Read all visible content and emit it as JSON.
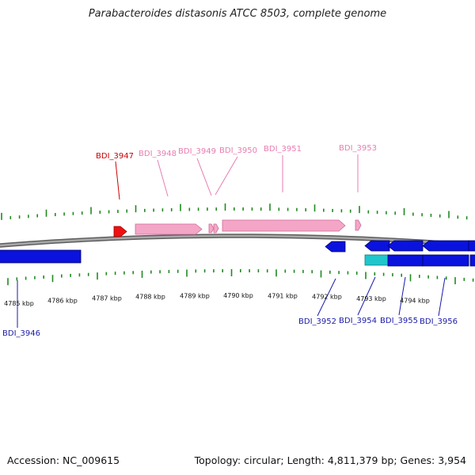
{
  "title": "Parabacteroides distasonis ATCC 8503, complete genome",
  "footer": {
    "accession": "Accession: NC_009615",
    "summary": "Topology: circular; Length: 4,811,379 bp; Genes: 3,954"
  },
  "colors": {
    "selected_gene": "#ee1111",
    "forward_gene": "#f4a6c6",
    "reverse_gene": "#0a12dd",
    "reverse_other": "#1fc6cc",
    "backbone": "#8a8a8a",
    "tick": "#1f8a1f",
    "label_selected": "#cc0000",
    "label_forward": "#e87db0",
    "label_reverse": "#1a1aaa"
  },
  "scale_labels": [
    "4785 kbp",
    "4786 kbp",
    "4787 kbp",
    "4788 kbp",
    "4789 kbp",
    "4790 kbp",
    "4791 kbp",
    "4792 kbp",
    "4793 kbp",
    "4794 kbp"
  ],
  "genes": [
    {
      "id": "BDI_3946",
      "strand": "reverse"
    },
    {
      "id": "BDI_3947",
      "strand": "forward",
      "selected": true
    },
    {
      "id": "BDI_3948",
      "strand": "forward"
    },
    {
      "id": "BDI_3949",
      "strand": "forward"
    },
    {
      "id": "BDI_3950",
      "strand": "forward"
    },
    {
      "id": "BDI_3951",
      "strand": "forward"
    },
    {
      "id": "BDI_3953",
      "strand": "forward"
    },
    {
      "id": "BDI_3952",
      "strand": "reverse"
    },
    {
      "id": "BDI_3954",
      "strand": "reverse"
    },
    {
      "id": "BDI_3955",
      "strand": "reverse"
    },
    {
      "id": "BDI_3956",
      "strand": "reverse"
    }
  ]
}
